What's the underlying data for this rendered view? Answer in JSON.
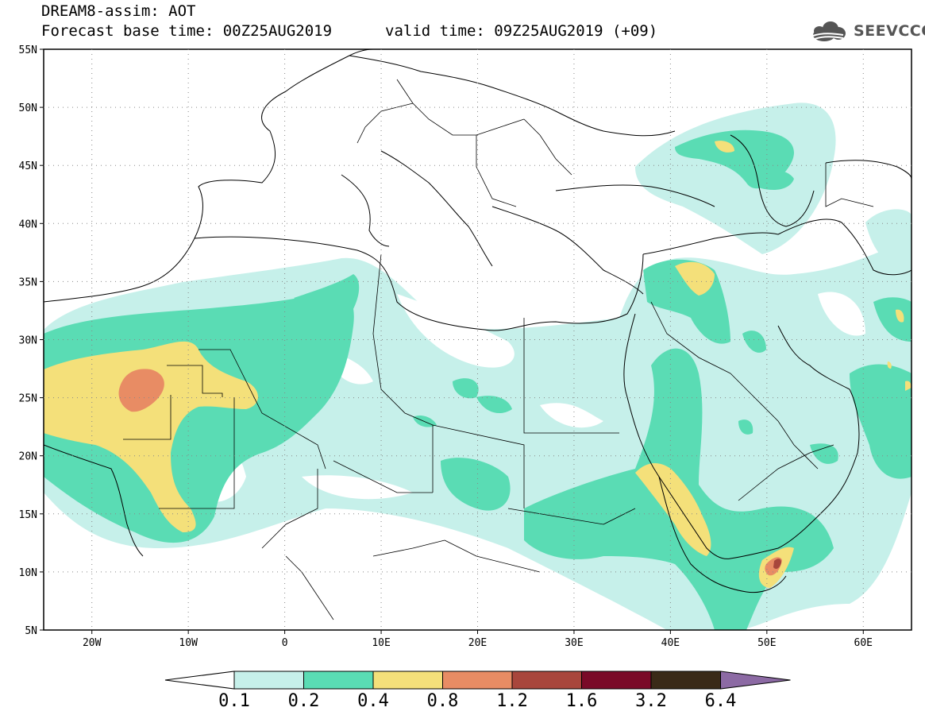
{
  "header": {
    "line1": "DREAM8-assim: AOT",
    "line2": "Forecast base time: 00Z25AUG2019",
    "line3": "valid time: 09Z25AUG2019 (+09)"
  },
  "logo": {
    "text": "SEEVCCC",
    "icon": "cloud-icon"
  },
  "map": {
    "lat_labels": [
      "55N",
      "50N",
      "45N",
      "40N",
      "35N",
      "30N",
      "25N",
      "20N",
      "15N",
      "10N",
      "5N"
    ],
    "lon_labels": [
      "20W",
      "10W",
      "0",
      "10E",
      "20E",
      "30E",
      "40E",
      "50E",
      "60E"
    ],
    "lon_range": [
      -25,
      65
    ],
    "lat_range": [
      5,
      55
    ],
    "grid": "dotted"
  },
  "colorbar": {
    "labels": [
      "0.1",
      "0.2",
      "0.4",
      "0.8",
      "1.2",
      "1.6",
      "3.2",
      "6.4"
    ],
    "colors": [
      "#ffffff",
      "#c6f0ea",
      "#5adcb4",
      "#f4e07a",
      "#e88c64",
      "#a8463c",
      "#7a0a28",
      "#3a2a18",
      "#8c6aa4"
    ]
  }
}
